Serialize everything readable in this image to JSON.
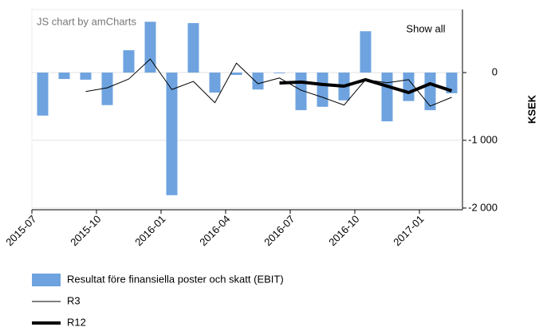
{
  "chart_data": {
    "type": "bar",
    "credit": "JS chart by amCharts",
    "button": "Show all",
    "y_label": "KSEK",
    "categories": [
      "2015-07",
      null,
      null,
      "2015-10",
      null,
      null,
      "2016-01",
      null,
      null,
      "2016-04",
      null,
      null,
      "2016-07",
      null,
      null,
      "2016-10",
      null,
      null,
      "2017-01",
      null
    ],
    "series": [
      {
        "name": "Resultat före finansiella poster och skatt (EBIT)",
        "type": "bar",
        "color": "#6ea3df",
        "values": [
          -635,
          -95,
          -105,
          -480,
          330,
          750,
          -1810,
          730,
          -295,
          -35,
          -250,
          -10,
          -555,
          -505,
          -410,
          610,
          -720,
          -420,
          -555,
          -305
        ]
      },
      {
        "name": "R3",
        "type": "line",
        "color": "#000000",
        "width": 1,
        "values": [
          null,
          null,
          -280,
          -225,
          -95,
          200,
          -250,
          -130,
          -445,
          140,
          -165,
          -80,
          -260,
          -365,
          -480,
          -105,
          -150,
          -105,
          -495,
          -365
        ]
      },
      {
        "name": "R12",
        "type": "line",
        "color": "#000000",
        "width": 4,
        "values": [
          null,
          null,
          null,
          null,
          null,
          null,
          null,
          null,
          null,
          null,
          null,
          -155,
          -140,
          -175,
          -200,
          -105,
          -200,
          -295,
          -165,
          -270
        ]
      }
    ],
    "ylim": [
      -2025,
      930
    ],
    "yticks": [
      {
        "value": -2000,
        "label": "-2 000"
      },
      {
        "value": -1000,
        "label": "-1 000"
      },
      0
    ],
    "grid": true
  }
}
